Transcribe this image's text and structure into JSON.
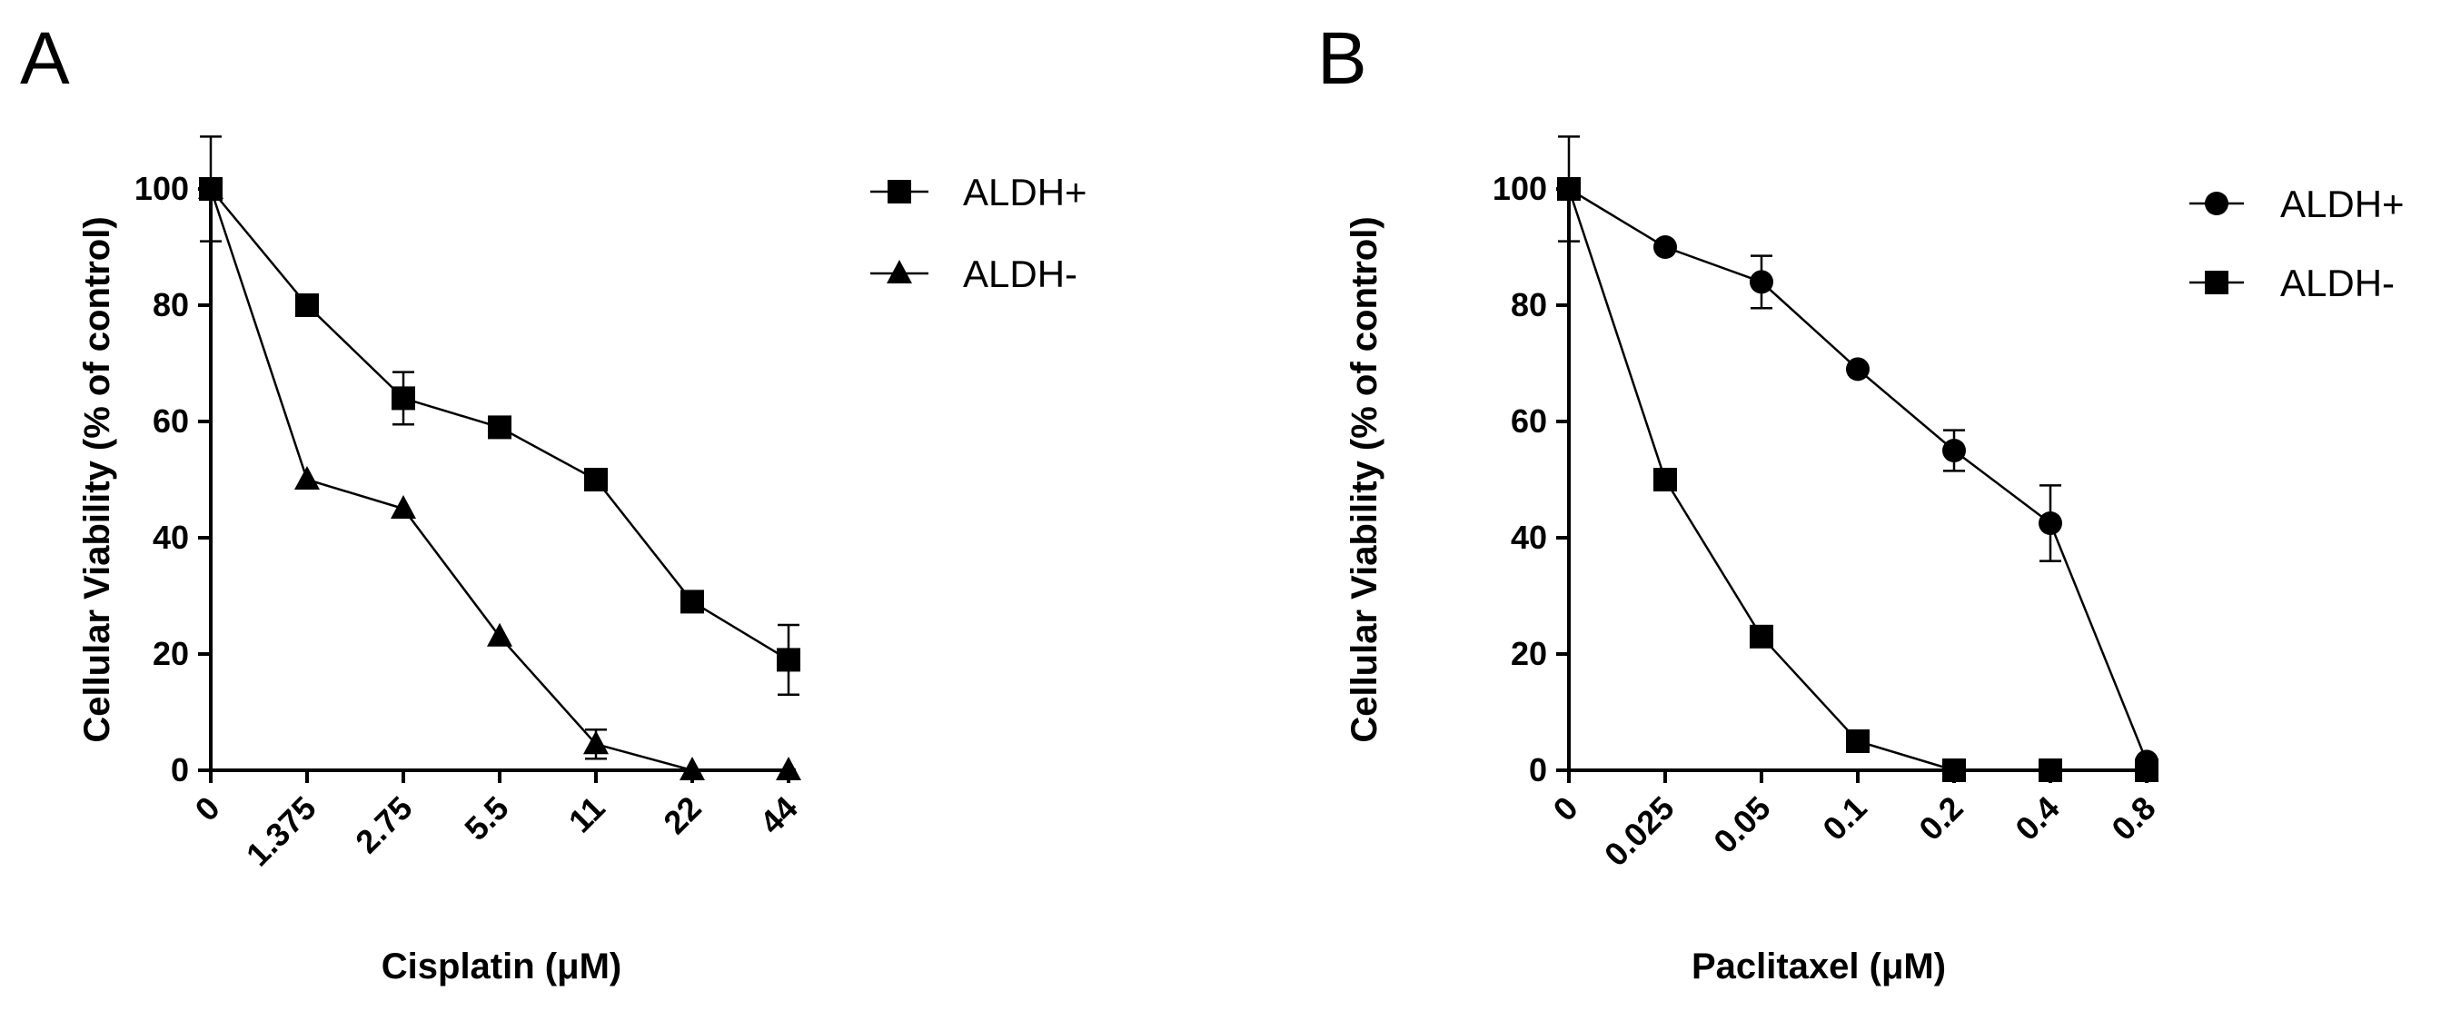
{
  "chart_data": [
    {
      "panel": "A",
      "type": "line",
      "xlabel": "Cisplatin (μM)",
      "ylabel": "Cellular Viability (% of control)",
      "categories": [
        "0",
        "1.375",
        "2.75",
        "5.5",
        "11",
        "22",
        "44"
      ],
      "ylim": [
        0,
        100
      ],
      "yticks": [
        "0",
        "20",
        "40",
        "60",
        "80",
        "100"
      ],
      "legend_position": "top-right",
      "grid": false,
      "series": [
        {
          "name": "ALDH+",
          "marker": "square",
          "values": [
            100,
            80,
            64,
            59,
            50,
            29,
            19
          ],
          "errors": [
            0,
            0,
            4.5,
            0,
            0,
            0,
            6
          ]
        },
        {
          "name": "ALDH-",
          "marker": "triangle",
          "values": [
            100,
            50,
            45,
            23,
            4.5,
            0,
            0
          ],
          "errors": [
            9,
            0,
            0,
            0,
            2.5,
            0,
            0
          ]
        }
      ]
    },
    {
      "panel": "B",
      "type": "line",
      "xlabel": "Paclitaxel (μM)",
      "ylabel": "Cellular Viability (% of control)",
      "categories": [
        "0",
        "0.025",
        "0.05",
        "0.1",
        "0.2",
        "0.4",
        "0.8"
      ],
      "ylim": [
        0,
        100
      ],
      "yticks": [
        "0",
        "20",
        "40",
        "60",
        "80",
        "100"
      ],
      "legend_position": "top-right",
      "grid": false,
      "series": [
        {
          "name": "ALDH+",
          "marker": "circle",
          "values": [
            100,
            90,
            84,
            69,
            55,
            42.5,
            1.5
          ],
          "errors": [
            9,
            0,
            4.5,
            0,
            3.5,
            6.5,
            0
          ]
        },
        {
          "name": "ALDH-",
          "marker": "square",
          "values": [
            100,
            50,
            23,
            5,
            0,
            0,
            0
          ],
          "errors": [
            0,
            0,
            1.5,
            1.5,
            0,
            0,
            0
          ]
        }
      ]
    }
  ]
}
